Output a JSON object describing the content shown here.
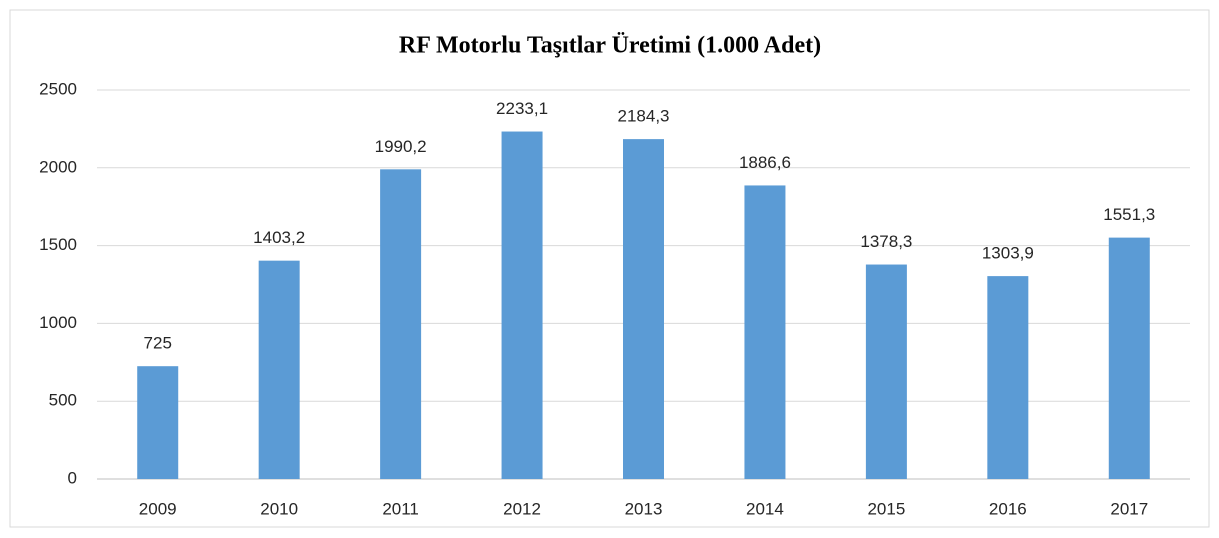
{
  "chart_data": {
    "type": "bar",
    "title": "RF Motorlu Taşıtlar Üretimi (1.000 Adet)",
    "categories": [
      "2009",
      "2010",
      "2011",
      "2012",
      "2013",
      "2014",
      "2015",
      "2016",
      "2017"
    ],
    "values": [
      725,
      1403.2,
      1990.2,
      2233.1,
      2184.3,
      1886.6,
      1378.3,
      1303.9,
      1551.3
    ],
    "value_labels": [
      "725",
      "1403,2",
      "1990,2",
      "2233,1",
      "2184,3",
      "1886,6",
      "1378,3",
      "1303,9",
      "1551,3"
    ],
    "color": "#5b9bd5",
    "ylim": [
      0,
      2500
    ],
    "yticks": [
      0,
      500,
      1000,
      1500,
      2000,
      2500
    ],
    "grid": true
  }
}
